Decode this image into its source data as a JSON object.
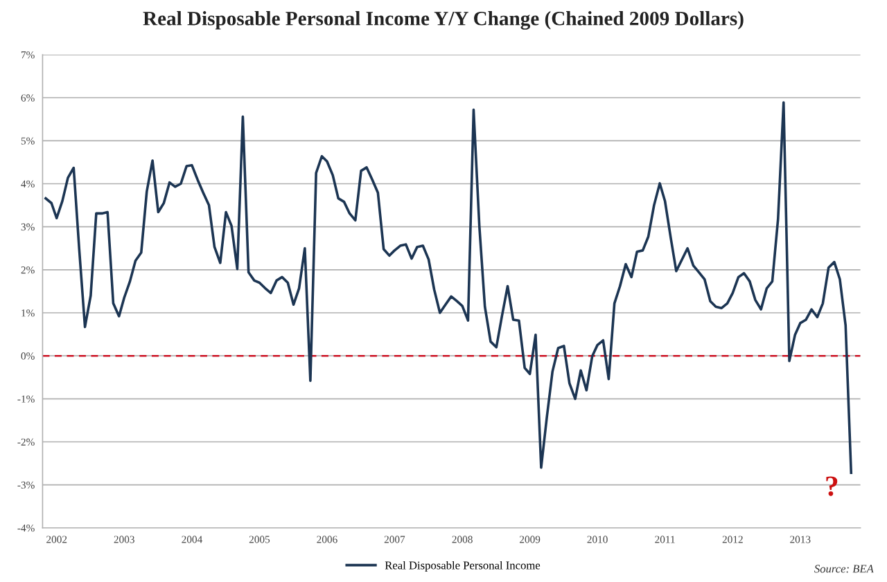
{
  "chart_data": {
    "type": "line",
    "title": "Real Disposable Personal Income Y/Y Change (Chained 2009 Dollars)",
    "x": [
      "2002-01",
      "2002-02",
      "2002-03",
      "2002-04",
      "2002-05",
      "2002-06",
      "2002-07",
      "2002-08",
      "2002-09",
      "2002-10",
      "2002-11",
      "2002-12",
      "2003-01",
      "2003-02",
      "2003-03",
      "2003-04",
      "2003-05",
      "2003-06",
      "2003-07",
      "2003-08",
      "2003-09",
      "2003-10",
      "2003-11",
      "2003-12",
      "2004-01",
      "2004-02",
      "2004-03",
      "2004-04",
      "2004-05",
      "2004-06",
      "2004-07",
      "2004-08",
      "2004-09",
      "2004-10",
      "2004-11",
      "2004-12",
      "2005-01",
      "2005-02",
      "2005-03",
      "2005-04",
      "2005-05",
      "2005-06",
      "2005-07",
      "2005-08",
      "2005-09",
      "2005-10",
      "2005-11",
      "2005-12",
      "2006-01",
      "2006-02",
      "2006-03",
      "2006-04",
      "2006-05",
      "2006-06",
      "2006-07",
      "2006-08",
      "2006-09",
      "2006-10",
      "2006-11",
      "2006-12",
      "2007-01",
      "2007-02",
      "2007-03",
      "2007-04",
      "2007-05",
      "2007-06",
      "2007-07",
      "2007-08",
      "2007-09",
      "2007-10",
      "2007-11",
      "2007-12",
      "2008-01",
      "2008-02",
      "2008-03",
      "2008-04",
      "2008-05",
      "2008-06",
      "2008-07",
      "2008-08",
      "2008-09",
      "2008-10",
      "2008-11",
      "2008-12",
      "2009-01",
      "2009-02",
      "2009-03",
      "2009-04",
      "2009-05",
      "2009-06",
      "2009-07",
      "2009-08",
      "2009-09",
      "2009-10",
      "2009-11",
      "2009-12",
      "2010-01",
      "2010-02",
      "2010-03",
      "2010-04",
      "2010-05",
      "2010-06",
      "2010-07",
      "2010-08",
      "2010-09",
      "2010-10",
      "2010-11",
      "2010-12",
      "2011-01",
      "2011-02",
      "2011-03",
      "2011-04",
      "2011-05",
      "2011-06",
      "2011-07",
      "2011-08",
      "2011-09",
      "2011-10",
      "2011-11",
      "2011-12",
      "2012-01",
      "2012-02",
      "2012-03",
      "2012-04",
      "2012-05",
      "2012-06",
      "2012-07",
      "2012-08",
      "2012-09",
      "2012-10",
      "2012-11",
      "2012-12",
      "2013-01",
      "2013-02",
      "2013-03",
      "2013-04",
      "2013-05",
      "2013-06",
      "2013-07",
      "2013-08",
      "2013-09",
      "2013-10",
      "2013-11",
      "2013-12"
    ],
    "series": [
      {
        "name": "Real Disposable Personal Income",
        "color": "#1c3553",
        "values": [
          3.66,
          3.55,
          3.2,
          3.6,
          4.14,
          4.37,
          2.48,
          0.67,
          1.4,
          3.31,
          3.31,
          3.34,
          1.22,
          0.92,
          1.35,
          1.73,
          2.21,
          2.4,
          3.82,
          4.54,
          3.34,
          3.55,
          4.03,
          3.93,
          4.0,
          4.41,
          4.43,
          4.09,
          3.79,
          3.5,
          2.53,
          2.16,
          3.34,
          3.02,
          2.02,
          5.56,
          1.94,
          1.75,
          1.7,
          1.57,
          1.46,
          1.75,
          1.83,
          1.7,
          1.19,
          1.57,
          2.5,
          -0.58,
          4.25,
          4.64,
          4.52,
          4.2,
          3.66,
          3.58,
          3.31,
          3.15,
          4.3,
          4.38,
          4.09,
          3.79,
          2.48,
          2.33,
          2.45,
          2.56,
          2.59,
          2.26,
          2.53,
          2.56,
          2.24,
          1.54,
          1.0,
          1.19,
          1.38,
          1.27,
          1.16,
          0.82,
          5.72,
          3.02,
          1.14,
          0.33,
          0.2,
          0.92,
          1.62,
          0.84,
          0.82,
          -0.28,
          -0.42,
          0.49,
          -2.6,
          -1.42,
          -0.37,
          0.18,
          0.23,
          -0.64,
          -1.0,
          -0.34,
          -0.8,
          -0.01,
          0.25,
          0.36,
          -0.54,
          1.22,
          1.62,
          2.13,
          1.83,
          2.42,
          2.45,
          2.77,
          3.5,
          4.01,
          3.6,
          2.75,
          1.97,
          2.24,
          2.5,
          2.1,
          1.94,
          1.78,
          1.27,
          1.14,
          1.11,
          1.22,
          1.46,
          1.83,
          1.92,
          1.73,
          1.3,
          1.08,
          1.57,
          1.73,
          3.18,
          5.89,
          -0.12,
          0.49,
          0.76,
          0.84,
          1.08,
          0.9,
          1.22,
          2.05,
          2.18,
          1.78,
          0.71,
          -2.72
        ]
      }
    ],
    "xlim": [
      "2001-12-15",
      "2014-01-20"
    ],
    "xticks": [
      {
        "value": "2002-03",
        "label": "2002"
      },
      {
        "value": "2003-03",
        "label": "2003"
      },
      {
        "value": "2004-03",
        "label": "2004"
      },
      {
        "value": "2005-03",
        "label": "2005"
      },
      {
        "value": "2006-03",
        "label": "2006"
      },
      {
        "value": "2007-03",
        "label": "2007"
      },
      {
        "value": "2008-03",
        "label": "2008"
      },
      {
        "value": "2009-03",
        "label": "2009"
      },
      {
        "value": "2010-03",
        "label": "2010"
      },
      {
        "value": "2011-03",
        "label": "2011"
      },
      {
        "value": "2012-03",
        "label": "2012"
      },
      {
        "value": "2013-03",
        "label": "2013"
      }
    ],
    "ylim": [
      -4,
      7
    ],
    "yticks": [
      {
        "value": -4,
        "label": "-4%"
      },
      {
        "value": -3,
        "label": "-3%"
      },
      {
        "value": -2,
        "label": "-2%"
      },
      {
        "value": -1,
        "label": "-1%"
      },
      {
        "value": 0,
        "label": "0%"
      },
      {
        "value": 1,
        "label": "1%"
      },
      {
        "value": 2,
        "label": "2%"
      },
      {
        "value": 3,
        "label": "3%"
      },
      {
        "value": 4,
        "label": "4%"
      },
      {
        "value": 5,
        "label": "5%"
      },
      {
        "value": 6,
        "label": "6%"
      },
      {
        "value": 7,
        "label": "7%"
      }
    ],
    "ref_lines": [
      {
        "axis": "y",
        "value": 0,
        "color": "#cc1122",
        "line_style": "dashed"
      }
    ],
    "annotations": [
      "?",
      "Source: BEA"
    ],
    "grid": "y",
    "legend": "bottom",
    "marker": "none",
    "line_style": "solid"
  }
}
